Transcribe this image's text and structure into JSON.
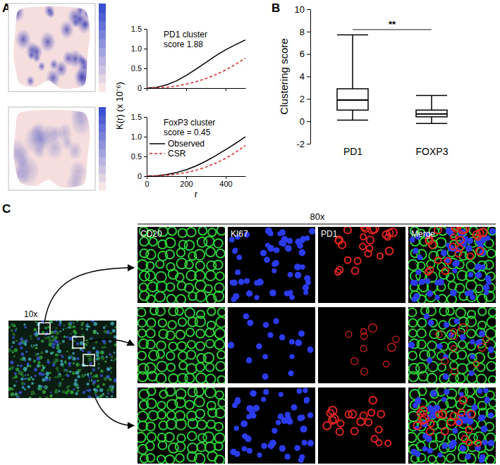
{
  "panel_labels": [
    "A",
    "B",
    "C"
  ],
  "chart_data": [
    {
      "type": "line",
      "annotations": [
        "PD1 cluster",
        "score 1.88"
      ],
      "y_label": "K(r) (x 10⁻⁶)",
      "x": [
        0,
        50,
        100,
        150,
        200,
        250,
        300,
        350,
        400,
        450,
        500
      ],
      "series": [
        {
          "name": "Observed",
          "color": "#000000",
          "line_style": "solid",
          "values": [
            0,
            0.02,
            0.08,
            0.18,
            0.32,
            0.48,
            0.65,
            0.82,
            0.97,
            1.1,
            1.22
          ]
        },
        {
          "name": "CSR",
          "color": "#d62728",
          "line_style": "dashed",
          "values": [
            0,
            0.005,
            0.02,
            0.05,
            0.1,
            0.16,
            0.24,
            0.34,
            0.46,
            0.6,
            0.76
          ]
        }
      ],
      "xlim": [
        0,
        500
      ],
      "xticks": [
        0,
        200,
        400
      ],
      "ylim": [
        0,
        1.5
      ],
      "yticks": [
        0,
        0.5,
        {
          "value": 1,
          "label": "1.0"
        },
        1.5
      ],
      "tick_labels": "y"
    },
    {
      "type": "line",
      "annotations": [
        "FoxP3 cluster",
        "score = 0.45"
      ],
      "x_label": "r",
      "x": [
        0,
        50,
        100,
        150,
        200,
        250,
        300,
        350,
        400,
        450,
        500
      ],
      "series": [
        {
          "name": "Observed",
          "color": "#000000",
          "line_style": "solid",
          "values": [
            0,
            0.01,
            0.04,
            0.09,
            0.16,
            0.26,
            0.38,
            0.52,
            0.67,
            0.83,
            1.0
          ]
        },
        {
          "name": "CSR",
          "color": "#d62728",
          "line_style": "dashed",
          "values": [
            0,
            0.005,
            0.02,
            0.05,
            0.09,
            0.15,
            0.23,
            0.33,
            0.45,
            0.6,
            0.78
          ]
        }
      ],
      "xlim": [
        0,
        500
      ],
      "xticks": [
        0,
        200,
        400
      ],
      "ylim": [
        0,
        1.5
      ],
      "yticks": [
        0,
        0.5,
        {
          "value": 1,
          "label": "1.0"
        },
        1.5
      ],
      "legend": "upper left"
    },
    {
      "type": "box",
      "y_label": "Clustering score",
      "categories": [
        "PD1",
        "FOXP3"
      ],
      "boxes": [
        {
          "min": 0.1,
          "q1": 1.0,
          "median": 1.9,
          "q3": 2.9,
          "max": 7.7
        },
        {
          "min": -0.2,
          "q1": 0.4,
          "median": 0.65,
          "q3": 1.0,
          "max": 2.3
        }
      ],
      "color": "#000000",
      "ylim": [
        -2,
        10
      ],
      "yticks": [
        -2,
        0,
        2,
        4,
        6,
        8,
        10
      ],
      "annotations": [
        "**"
      ]
    }
  ],
  "micrograph": {
    "overview_magnification": "10x",
    "detail_magnification": "80x",
    "channels": [
      "CD20",
      "KI67",
      "PD1",
      "Merge"
    ]
  }
}
